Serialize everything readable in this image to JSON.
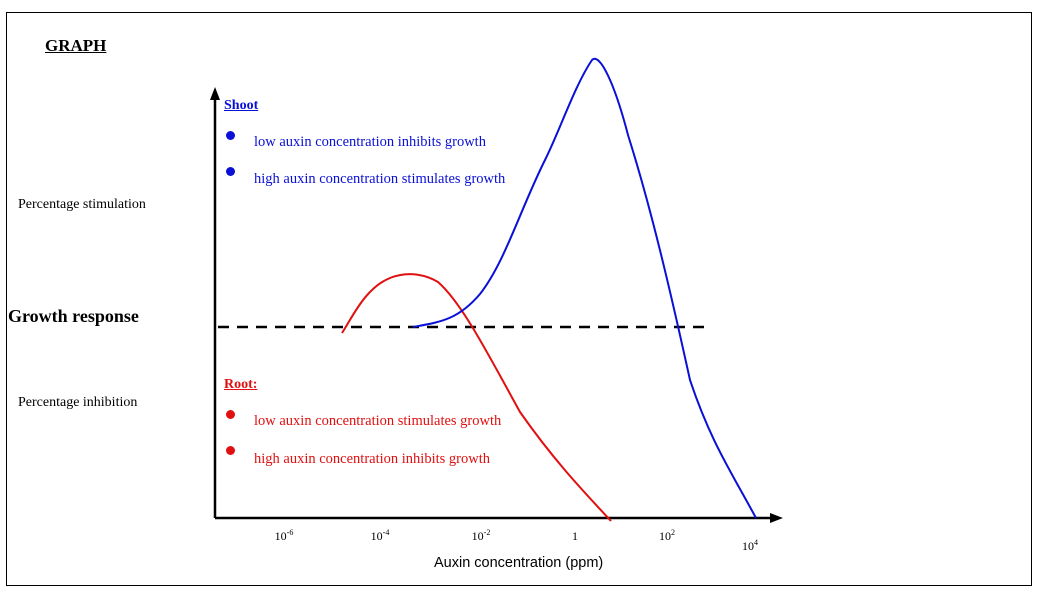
{
  "heading": "GRAPH",
  "y_labels": {
    "upper": "Percentage stimulation",
    "middle": "Growth response",
    "lower": "Percentage inhibition"
  },
  "x_axis": {
    "label": "Auxin concentration (ppm)",
    "ticks": [
      {
        "base": "10",
        "exp": "-6"
      },
      {
        "base": "10",
        "exp": "-4"
      },
      {
        "base": "10",
        "exp": "-2"
      },
      {
        "base": "1",
        "exp": ""
      },
      {
        "base": "10",
        "exp": "2"
      },
      {
        "base": "10",
        "exp": "4"
      }
    ]
  },
  "legend": {
    "shoot": {
      "title": "Shoot",
      "items": [
        "low auxin concentration inhibits growth",
        "high auxin concentration stimulates growth"
      ]
    },
    "root": {
      "title": "Root:",
      "items": [
        "low auxin concentration stimulates growth",
        "high auxin concentration inhibits growth"
      ]
    }
  },
  "colors": {
    "shoot": "#0a10d6",
    "root": "#e01010",
    "axis": "#000000"
  }
}
